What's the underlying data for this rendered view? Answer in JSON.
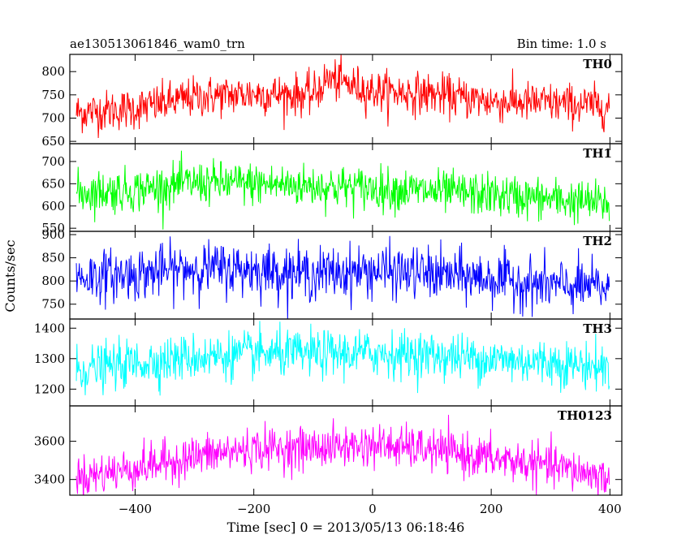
{
  "header": {
    "title": "ae130513061846_wam0_trn",
    "bin_time": "Bin time: 1.0 s"
  },
  "chart_data": {
    "type": "line",
    "xlabel": "Time [sec] 0 = 2013/05/13 06:18:46",
    "ylabel": "Counts/sec",
    "xlim": [
      -510,
      420
    ],
    "data_x_range": [
      -499,
      399
    ],
    "xticks": [
      -400,
      -200,
      0,
      200,
      400
    ],
    "xtick_labels": [
      "−400",
      "−200",
      "0",
      "200",
      "400"
    ],
    "grid": false,
    "panels": [
      {
        "name": "TH0",
        "color": "#ff0000",
        "ylim": [
          645,
          837
        ],
        "yticks": [
          650,
          700,
          750,
          800
        ],
        "baseline": [
          [
            -499,
            712
          ],
          [
            -400,
            720
          ],
          [
            -300,
            745
          ],
          [
            -200,
            752
          ],
          [
            -100,
            750
          ],
          [
            -75,
            785
          ],
          [
            0,
            758
          ],
          [
            100,
            752
          ],
          [
            200,
            736
          ],
          [
            300,
            732
          ],
          [
            399,
            725
          ]
        ],
        "noise_sd": 22
      },
      {
        "name": "TH1",
        "color": "#00ff00",
        "ylim": [
          543,
          740
        ],
        "yticks": [
          550,
          600,
          650,
          700
        ],
        "baseline": [
          [
            -499,
            630
          ],
          [
            -400,
            636
          ],
          [
            -300,
            652
          ],
          [
            -200,
            650
          ],
          [
            -100,
            645
          ],
          [
            0,
            640
          ],
          [
            100,
            632
          ],
          [
            200,
            625
          ],
          [
            300,
            615
          ],
          [
            399,
            605
          ]
        ],
        "noise_sd": 24
      },
      {
        "name": "TH2",
        "color": "#0000ff",
        "ylim": [
          718,
          907
        ],
        "yticks": [
          750,
          800,
          850,
          900
        ],
        "baseline": [
          [
            -499,
            808
          ],
          [
            -400,
            815
          ],
          [
            -300,
            828
          ],
          [
            -200,
            825
          ],
          [
            -100,
            815
          ],
          [
            0,
            822
          ],
          [
            100,
            815
          ],
          [
            200,
            805
          ],
          [
            300,
            790
          ],
          [
            399,
            785
          ]
        ],
        "noise_sd": 28
      },
      {
        "name": "TH3",
        "color": "#00ffff",
        "ylim": [
          1145,
          1430
        ],
        "yticks": [
          1200,
          1300,
          1400
        ],
        "baseline": [
          [
            -499,
            1262
          ],
          [
            -400,
            1285
          ],
          [
            -300,
            1305
          ],
          [
            -200,
            1315
          ],
          [
            -100,
            1315
          ],
          [
            0,
            1318
          ],
          [
            100,
            1312
          ],
          [
            200,
            1298
          ],
          [
            300,
            1288
          ],
          [
            399,
            1270
          ]
        ],
        "noise_sd": 38
      },
      {
        "name": "TH0123",
        "color": "#ff00ff",
        "ylim": [
          3318,
          3785
        ],
        "yticks": [
          3400,
          3600
        ],
        "baseline": [
          [
            -499,
            3410
          ],
          [
            -400,
            3460
          ],
          [
            -300,
            3520
          ],
          [
            -200,
            3560
          ],
          [
            -100,
            3565
          ],
          [
            0,
            3580
          ],
          [
            100,
            3555
          ],
          [
            200,
            3510
          ],
          [
            300,
            3470
          ],
          [
            399,
            3410
          ]
        ],
        "noise_sd": 55
      }
    ]
  }
}
